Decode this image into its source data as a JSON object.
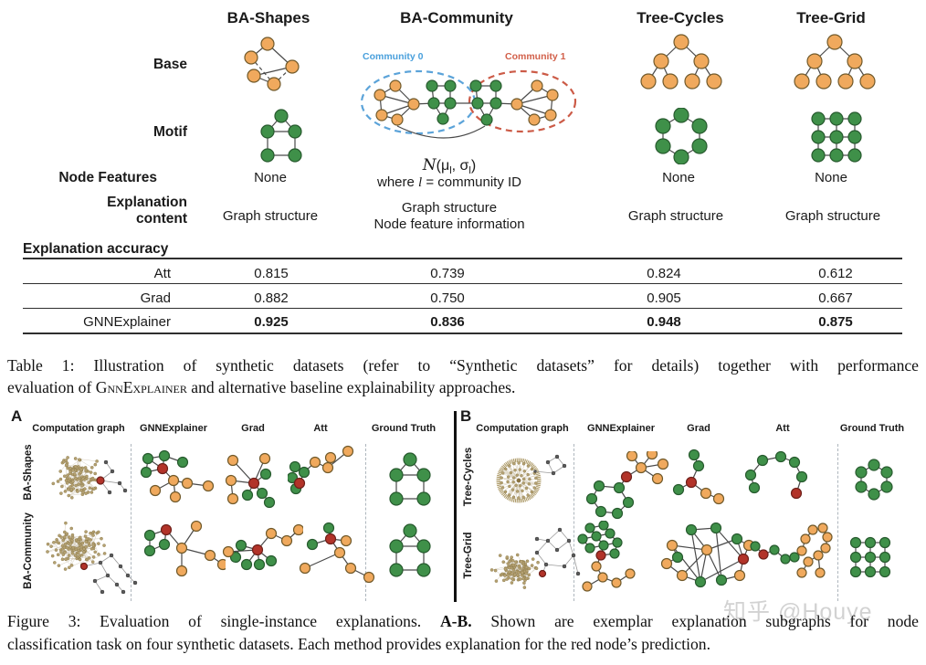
{
  "table1": {
    "col_headers": [
      "BA-Shapes",
      "BA-Community",
      "Tree-Cycles",
      "Tree-Grid"
    ],
    "row_base": "Base",
    "row_motif": "Motif",
    "row_node_features": "Node Features",
    "row_expl_content_l1": "Explanation",
    "row_expl_content_l2": "content",
    "row_expl_accuracy": "Explanation accuracy",
    "community0_label": "Community 0",
    "community1_label": "Community 1",
    "node_features": {
      "ba_shapes": "None",
      "formula": {
        "n": "N",
        "p1": "(μ",
        "s1": "l",
        "p2": ", σ",
        "s2": "l",
        "p3": ")"
      },
      "where": {
        "w1": "where ",
        "l": "l",
        "w2": " = community ID"
      },
      "tree_cycles": "None",
      "tree_grid": "None"
    },
    "expl_content": {
      "ba_shapes": "Graph structure",
      "ba_community_l1": "Graph structure",
      "ba_community_l2": "Node feature information",
      "tree_cycles": "Graph structure",
      "tree_grid": "Graph structure"
    },
    "accuracy": [
      {
        "method": "Att",
        "v0": "0.815",
        "v1": "0.739",
        "v2": "0.824",
        "v3": "0.612"
      },
      {
        "method": "Grad",
        "v0": "0.882",
        "v1": "0.750",
        "v2": "0.905",
        "v3": "0.667"
      },
      {
        "method": "GNNExplainer",
        "v0": "0.925",
        "v1": "0.836",
        "v2": "0.948",
        "v3": "0.875"
      }
    ]
  },
  "chart_data": {
    "type": "table",
    "columns": [
      "BA-Shapes",
      "BA-Community",
      "Tree-Cycles",
      "Tree-Grid"
    ],
    "rows": [
      {
        "method": "Att",
        "values": [
          0.815,
          0.739,
          0.824,
          0.612
        ]
      },
      {
        "method": "Grad",
        "values": [
          0.882,
          0.75,
          0.905,
          0.667
        ]
      },
      {
        "method": "GNNExplainer",
        "values": [
          0.925,
          0.836,
          0.948,
          0.875
        ]
      }
    ]
  },
  "table1_caption": {
    "line1": "Table 1: Illustration of synthetic datasets (refer to “Synthetic datasets” for details) together with performance",
    "line2_pre": "evaluation of ",
    "line2_sc": "GnnExplainer",
    "line2_post": " and alternative baseline explainability approaches."
  },
  "figure3": {
    "panel_a": "A",
    "panel_b": "B",
    "headers": [
      "Computation graph",
      "GNNExplainer",
      "Grad",
      "Att",
      "Ground Truth"
    ],
    "rows_a": [
      "BA-Shapes",
      "BA-Community"
    ],
    "rows_b": [
      "Tree-Cycles",
      "Tree-Grid"
    ]
  },
  "figure3_caption": {
    "part1": "Figure 3: Evaluation of single-instance explanations. ",
    "bold": "A-B.",
    "part2": " Shown are exemplar explanation subgraphs for node",
    "line2": "classification task on four synthetic datasets. Each method provides explanation for the red node’s prediction."
  },
  "watermark": "知乎 @Houye",
  "colors": {
    "node_orange": "#F0A95D",
    "node_green": "#3F9049",
    "node_red": "#B23329",
    "hairball_tan": "#B5A172",
    "community0_blue": "#4AA0DC",
    "community1_red": "#D2604A"
  }
}
